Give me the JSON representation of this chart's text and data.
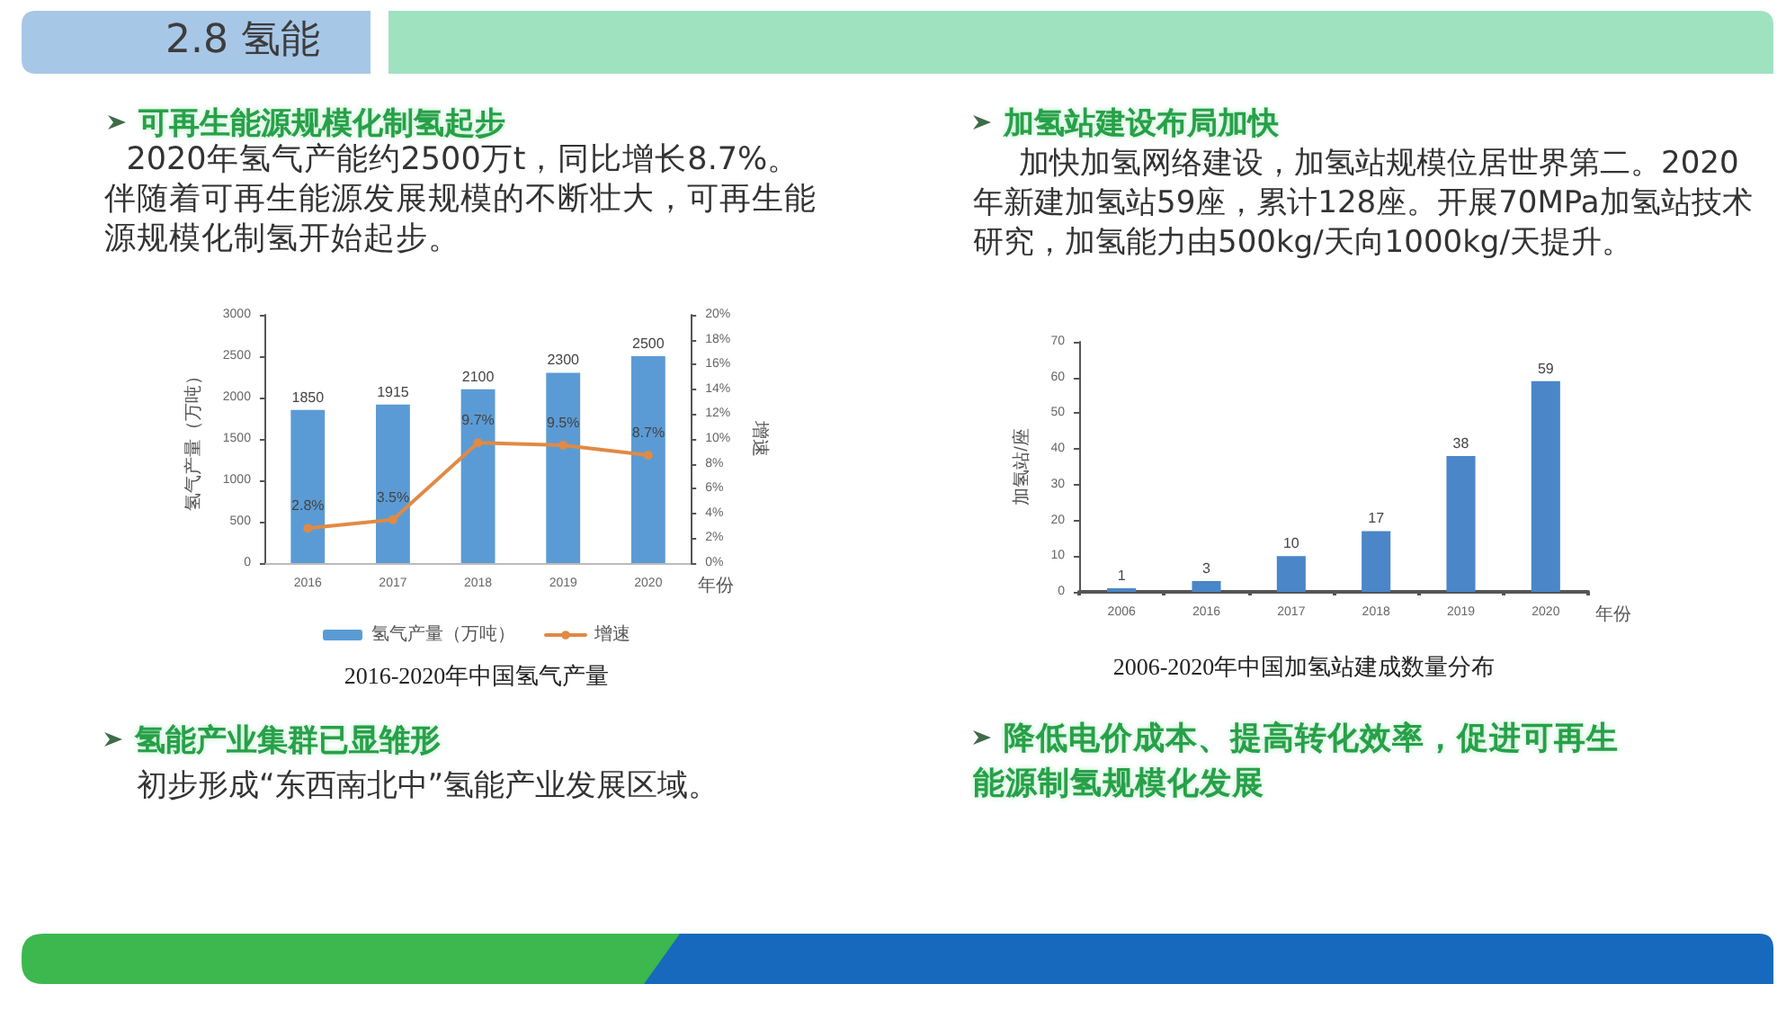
{
  "chart_data": [
    {
      "type": "other",
      "title": "2.8 氢能"
    },
    {
      "type": "bar",
      "title": "2016-2020年中国氢气产量",
      "annotations": [
        "可再生能源规模化制氢起步",
        "2020年氢气产能约2500万t，同比增长8.7%。伴随着可再生能源发展规模的不断壮大，可再生能源规模化制氢开始起步。",
        "氢能产业集群已显雏形",
        "初步形成“东西南北中”氢能产业发展区域。"
      ],
      "xlabel": "年份",
      "ylabel": "氢气产量（万吨）",
      "y2label": "增速",
      "categories": [
        "2016",
        "2017",
        "2018",
        "2019",
        "2020"
      ],
      "series": [
        {
          "name": "氢气产量（万吨）",
          "color": "#5b9bd5",
          "values": [
            1850,
            1915,
            2100,
            2300,
            2500
          ],
          "value_labels": [
            "1850",
            "1915",
            "2100",
            "2300",
            "2500"
          ]
        },
        {
          "name": "增速",
          "type": "line",
          "axis": "y2",
          "color": "#e08a45",
          "values": [
            2.8,
            3.5,
            9.7,
            9.5,
            8.7
          ],
          "value_labels": [
            "2.8%",
            "3.5%",
            "9.7%",
            "9.5%",
            "8.7%"
          ]
        }
      ],
      "ylim": [
        0,
        3000
      ],
      "yticks": [
        0,
        500,
        1000,
        1500,
        2000,
        2500,
        3000
      ],
      "y2lim": [
        0,
        20
      ],
      "y2ticks": [
        {
          "value": 0,
          "label": "0%"
        },
        {
          "value": 2,
          "label": "2%"
        },
        {
          "value": 4,
          "label": "4%"
        },
        {
          "value": 6,
          "label": "6%"
        },
        {
          "value": 8,
          "label": "8%"
        },
        {
          "value": 10,
          "label": "10%"
        },
        {
          "value": 12,
          "label": "12%"
        },
        {
          "value": 14,
          "label": "14%"
        },
        {
          "value": 16,
          "label": "16%"
        },
        {
          "value": 18,
          "label": "18%"
        },
        {
          "value": 20,
          "label": "20%"
        }
      ],
      "legend": "bottom",
      "marker": "circle"
    },
    {
      "type": "bar",
      "title": "2006-2020年中国加氢站建成数量分布",
      "annotations": [
        "加氢站建设布局加快",
        "加快加氢网络建设，加氢站规模位居世界第二。2020年新建加氢站59座，累计128座。开展70MPa加氢站技术研究，加氢能力由500kg/天向1000kg/天提升。",
        "降低电价成本、提高转化效率，促进可再生能源制氢规模化发展"
      ],
      "xlabel": "年份",
      "ylabel": "加氢站/座",
      "categories": [
        "2006",
        "2016",
        "2017",
        "2018",
        "2019",
        "2020"
      ],
      "values": [
        1,
        3,
        10,
        17,
        38,
        59
      ],
      "color": "#4a86c8",
      "ylim": [
        0,
        70
      ],
      "yticks": [
        0,
        10,
        20,
        30,
        40,
        50,
        60,
        70
      ],
      "data_labels": true
    }
  ]
}
